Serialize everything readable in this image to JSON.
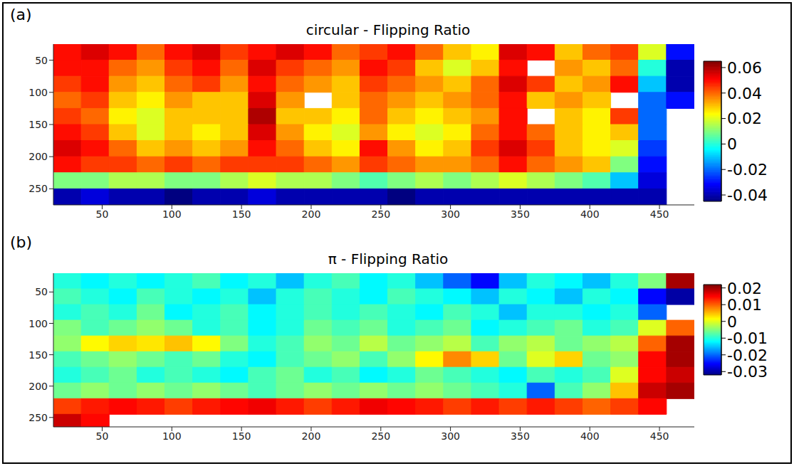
{
  "chart_data": [
    {
      "type": "heatmap",
      "panel_label": "(a)",
      "title": "circular - Flipping Ratio",
      "xlim": [
        15,
        475
      ],
      "ylim": [
        25,
        275
      ],
      "xticks": [
        50,
        100,
        150,
        200,
        250,
        300,
        350,
        400,
        450
      ],
      "yticks": [
        50,
        100,
        150,
        200,
        250
      ],
      "x_edges": [
        15,
        35,
        55,
        75,
        95,
        115,
        135,
        155,
        175,
        195,
        215,
        235,
        255,
        275,
        295,
        315,
        335,
        355,
        375,
        395,
        415,
        435,
        455,
        475
      ],
      "y_edges": [
        25,
        50,
        75,
        100,
        125,
        150,
        175,
        200,
        225,
        250,
        275
      ],
      "cells": [
        [
          0.05,
          0.055,
          0.05,
          0.04,
          0.05,
          0.055,
          0.045,
          0.05,
          0.055,
          0.05,
          0.04,
          0.045,
          0.05,
          0.04,
          0.03,
          0.025,
          0.055,
          0.05,
          0.03,
          0.04,
          0.045,
          0.02,
          -0.03
        ],
        [
          0.05,
          0.05,
          0.04,
          0.035,
          0.045,
          0.05,
          0.04,
          0.055,
          0.045,
          0.04,
          0.035,
          0.05,
          0.045,
          0.03,
          0.02,
          0.03,
          0.05,
          null,
          0.035,
          0.03,
          0.04,
          0.0,
          -0.04
        ],
        [
          0.045,
          0.05,
          0.035,
          0.03,
          0.04,
          0.045,
          0.035,
          0.05,
          0.04,
          0.035,
          0.03,
          0.045,
          0.04,
          0.035,
          0.03,
          0.04,
          0.055,
          0.045,
          0.03,
          0.035,
          0.05,
          -0.01,
          -0.04
        ],
        [
          0.04,
          0.045,
          0.03,
          0.025,
          0.035,
          0.03,
          0.03,
          0.055,
          0.035,
          null,
          0.03,
          0.04,
          0.035,
          0.03,
          0.035,
          0.04,
          0.05,
          0.03,
          0.035,
          0.03,
          null,
          -0.02,
          -0.03
        ],
        [
          0.045,
          0.04,
          0.025,
          0.02,
          0.03,
          0.03,
          0.03,
          0.06,
          0.03,
          0.03,
          0.025,
          0.04,
          0.03,
          0.025,
          0.03,
          0.035,
          0.05,
          null,
          0.03,
          0.025,
          0.045,
          -0.02,
          null
        ],
        [
          0.05,
          0.045,
          0.03,
          0.02,
          0.03,
          0.025,
          0.03,
          0.055,
          0.035,
          0.025,
          0.02,
          0.035,
          0.025,
          0.02,
          0.025,
          0.04,
          0.05,
          0.04,
          0.03,
          0.025,
          0.03,
          -0.02,
          null
        ],
        [
          0.055,
          0.05,
          0.04,
          0.03,
          0.035,
          0.03,
          0.035,
          0.05,
          0.04,
          0.03,
          0.025,
          0.05,
          0.035,
          0.025,
          0.03,
          0.045,
          0.055,
          0.045,
          0.03,
          0.025,
          0.02,
          -0.025,
          null
        ],
        [
          0.05,
          0.045,
          0.045,
          0.04,
          0.045,
          0.04,
          0.045,
          0.045,
          0.045,
          0.04,
          0.035,
          0.045,
          0.04,
          0.035,
          0.035,
          0.04,
          0.05,
          0.04,
          0.035,
          0.03,
          0.01,
          -0.03,
          null
        ],
        [
          0.01,
          0.01,
          0.015,
          0.015,
          0.01,
          0.01,
          0.015,
          0.02,
          0.015,
          0.015,
          0.01,
          0.005,
          0.01,
          0.015,
          0.01,
          0.015,
          0.02,
          0.015,
          0.01,
          0.005,
          -0.01,
          -0.035,
          null
        ],
        [
          -0.04,
          -0.035,
          -0.04,
          -0.04,
          -0.045,
          -0.04,
          -0.04,
          -0.035,
          -0.04,
          -0.04,
          -0.04,
          -0.04,
          -0.045,
          -0.04,
          -0.04,
          -0.04,
          -0.04,
          -0.04,
          -0.04,
          -0.04,
          -0.04,
          -0.04,
          null
        ]
      ],
      "colorbar": {
        "range": [
          -0.045,
          0.065
        ],
        "ticks": [
          -0.04,
          -0.02,
          0,
          0.02,
          0.04,
          0.06
        ]
      }
    },
    {
      "type": "heatmap",
      "panel_label": "(b)",
      "title": "π - Flipping Ratio",
      "xlim": [
        15,
        475
      ],
      "ylim": [
        20,
        265
      ],
      "xticks": [
        50,
        100,
        150,
        200,
        250,
        300,
        350,
        400,
        450
      ],
      "yticks": [
        50,
        100,
        150,
        200,
        250
      ],
      "x_edges": [
        15,
        35,
        55,
        75,
        95,
        115,
        135,
        155,
        175,
        195,
        215,
        235,
        255,
        275,
        295,
        315,
        335,
        355,
        375,
        395,
        415,
        435,
        455,
        475
      ],
      "y_edges": [
        20,
        45,
        70,
        95,
        120,
        145,
        170,
        195,
        220,
        245,
        265
      ],
      "cells": [
        [
          -0.01,
          -0.012,
          -0.01,
          -0.012,
          -0.01,
          -0.008,
          -0.012,
          -0.01,
          -0.015,
          -0.01,
          -0.008,
          -0.012,
          -0.01,
          -0.015,
          -0.02,
          -0.025,
          -0.015,
          -0.01,
          -0.012,
          -0.015,
          -0.01,
          -0.005,
          0.02
        ],
        [
          -0.008,
          -0.01,
          -0.012,
          -0.008,
          -0.01,
          -0.012,
          -0.01,
          -0.015,
          -0.01,
          -0.008,
          -0.01,
          -0.012,
          -0.008,
          -0.01,
          -0.012,
          -0.015,
          -0.01,
          -0.012,
          -0.015,
          -0.01,
          -0.012,
          -0.025,
          -0.03
        ],
        [
          -0.01,
          -0.008,
          -0.01,
          -0.006,
          -0.012,
          -0.01,
          -0.008,
          -0.012,
          -0.01,
          -0.008,
          -0.01,
          -0.008,
          -0.01,
          -0.012,
          -0.008,
          -0.01,
          -0.015,
          -0.01,
          -0.01,
          -0.012,
          -0.01,
          -0.02,
          null
        ],
        [
          -0.005,
          -0.008,
          -0.006,
          -0.004,
          -0.006,
          -0.01,
          -0.008,
          -0.012,
          -0.01,
          -0.006,
          -0.008,
          -0.006,
          -0.01,
          -0.008,
          -0.006,
          -0.012,
          -0.01,
          -0.008,
          -0.006,
          -0.01,
          -0.008,
          0.0,
          0.01
        ],
        [
          -0.004,
          0.002,
          0.004,
          0.003,
          0.005,
          0.002,
          -0.005,
          -0.01,
          -0.008,
          -0.004,
          -0.006,
          -0.002,
          -0.006,
          -0.004,
          -0.002,
          -0.008,
          -0.004,
          -0.002,
          -0.006,
          -0.004,
          -0.002,
          0.01,
          0.02
        ],
        [
          -0.008,
          -0.006,
          -0.004,
          -0.006,
          -0.008,
          -0.006,
          -0.01,
          -0.012,
          -0.008,
          -0.006,
          -0.004,
          -0.008,
          -0.004,
          0.002,
          0.008,
          0.004,
          -0.006,
          0.0,
          0.004,
          -0.006,
          -0.004,
          0.015,
          0.02
        ],
        [
          -0.01,
          -0.008,
          -0.006,
          -0.01,
          -0.008,
          -0.01,
          -0.012,
          -0.008,
          -0.006,
          -0.01,
          -0.008,
          -0.012,
          -0.01,
          -0.006,
          -0.008,
          -0.01,
          -0.012,
          -0.008,
          -0.01,
          -0.008,
          0.0,
          0.015,
          0.018
        ],
        [
          -0.006,
          -0.004,
          -0.006,
          -0.004,
          -0.006,
          -0.004,
          -0.006,
          -0.008,
          -0.006,
          -0.004,
          -0.006,
          -0.004,
          -0.006,
          -0.004,
          -0.006,
          -0.008,
          -0.01,
          -0.02,
          -0.008,
          -0.004,
          0.005,
          0.018,
          0.02
        ],
        [
          0.012,
          0.014,
          0.015,
          0.014,
          0.012,
          0.014,
          0.015,
          0.016,
          0.014,
          0.012,
          0.014,
          0.016,
          0.015,
          0.014,
          0.012,
          0.014,
          0.012,
          0.014,
          0.012,
          0.01,
          0.012,
          0.015,
          null
        ],
        [
          0.018,
          0.015,
          null,
          null,
          null,
          null,
          null,
          null,
          null,
          null,
          null,
          null,
          null,
          null,
          null,
          null,
          null,
          null,
          null,
          null,
          null,
          null,
          null
        ]
      ],
      "colorbar": {
        "range": [
          -0.032,
          0.022
        ],
        "ticks": [
          -0.03,
          -0.02,
          -0.01,
          0,
          0.01,
          0.02
        ]
      }
    }
  ]
}
